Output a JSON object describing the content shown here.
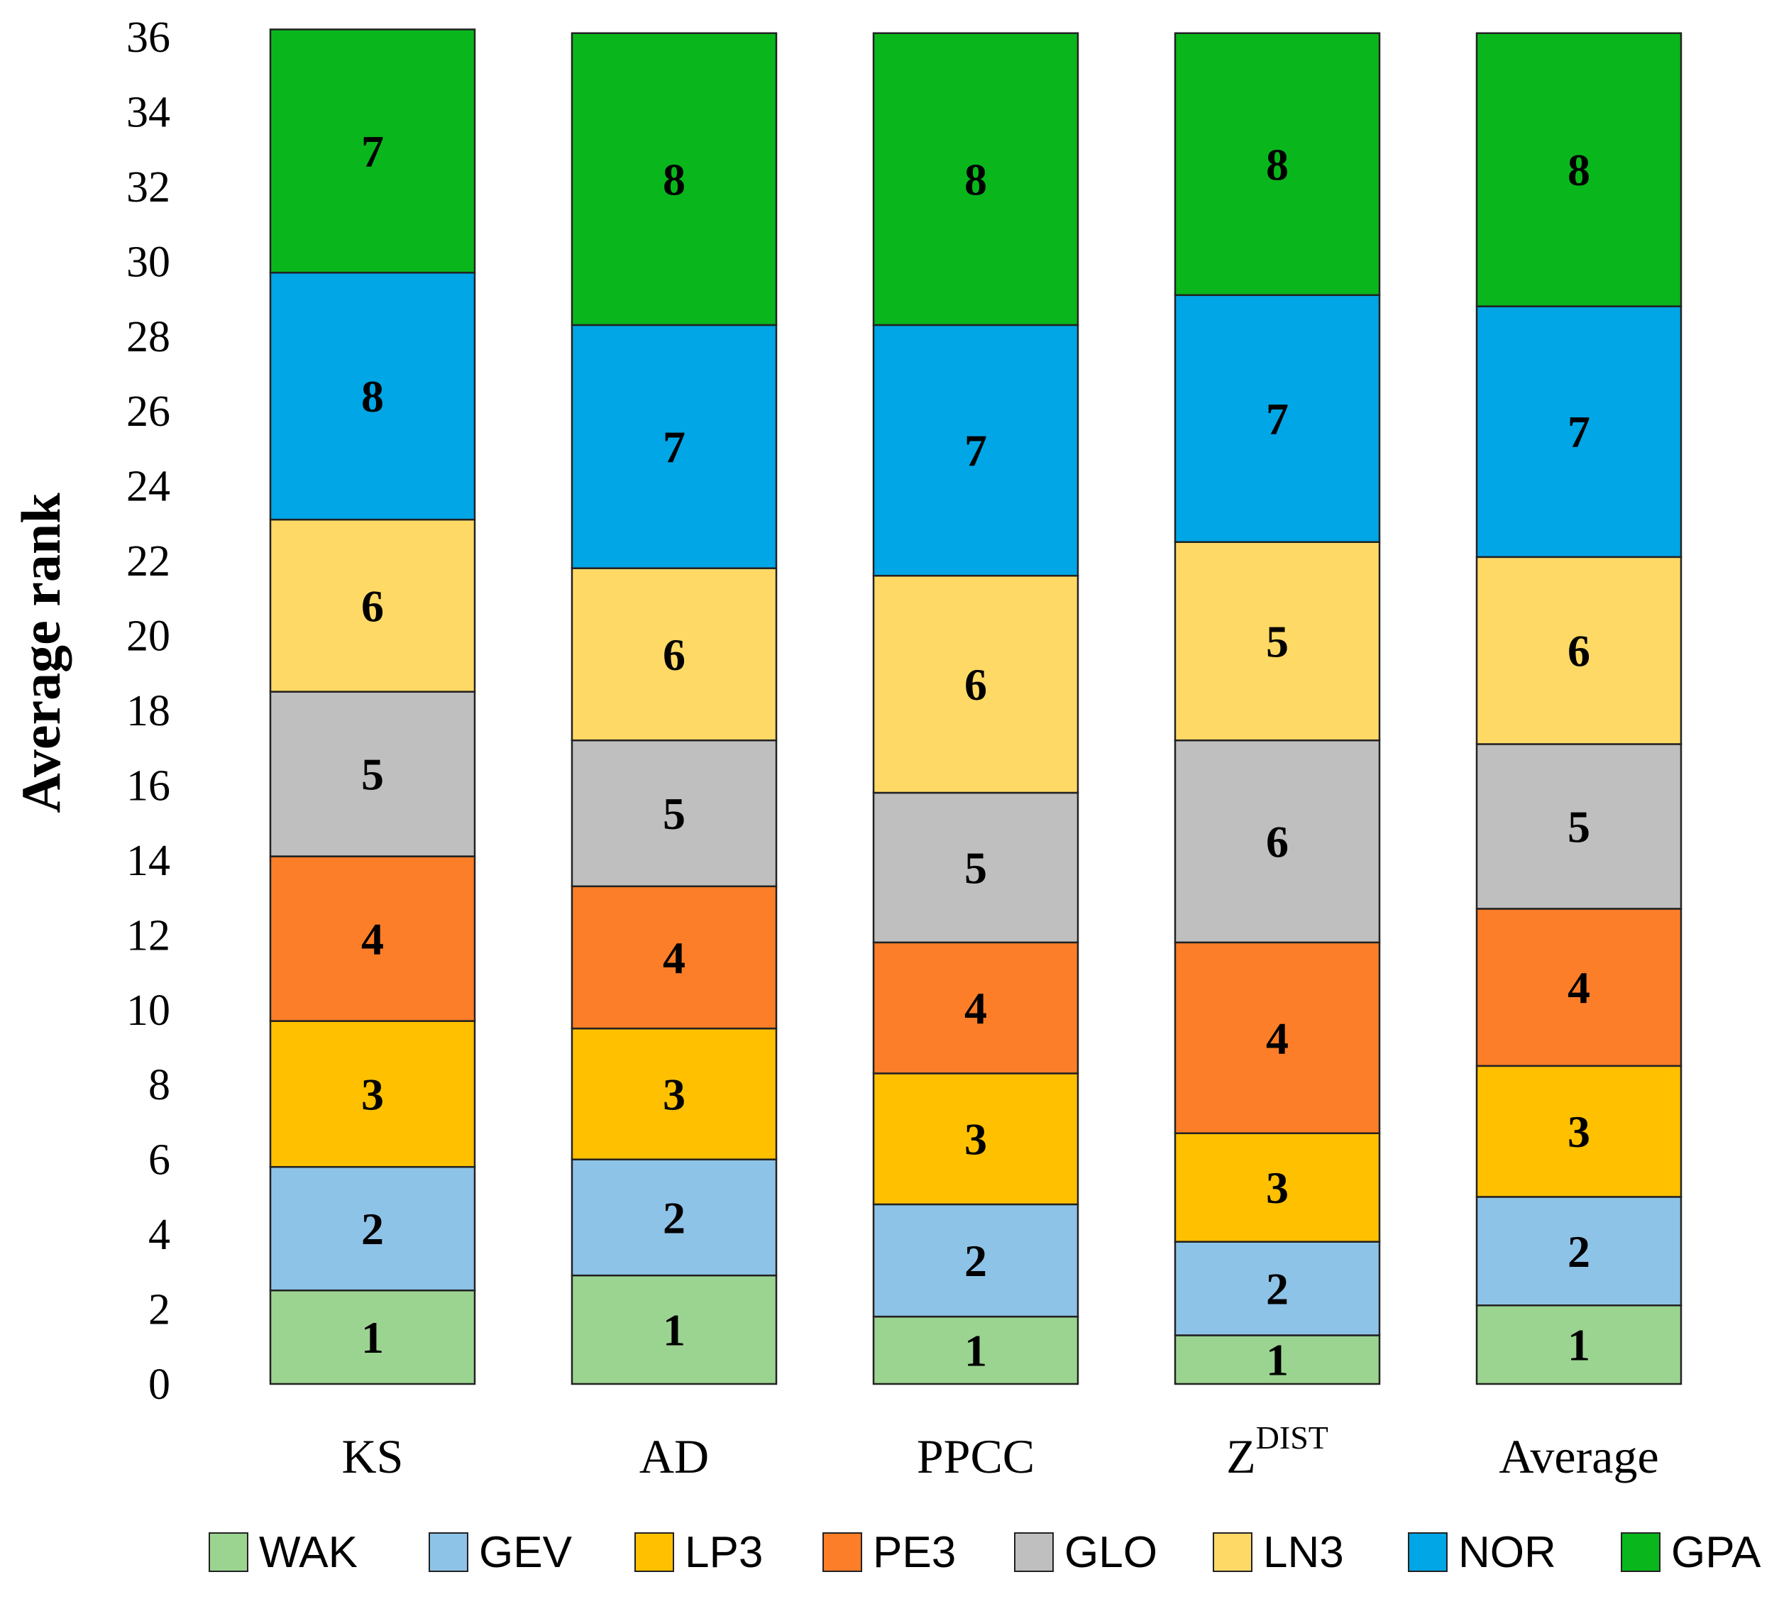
{
  "chart_data": {
    "type": "bar",
    "stacked": true,
    "title": "",
    "xlabel": "",
    "ylabel": "Average rank",
    "ylim": [
      0,
      36
    ],
    "yticks": [
      0,
      2,
      4,
      6,
      8,
      10,
      12,
      14,
      16,
      18,
      20,
      22,
      24,
      26,
      28,
      30,
      32,
      34,
      36
    ],
    "grid": false,
    "legend_position": "bottom",
    "categories": [
      "KS",
      "AD",
      "PPCC",
      "Z",
      "Average"
    ],
    "category_superscripts": [
      "",
      "",
      "",
      "DIST",
      ""
    ],
    "series": [
      {
        "name": "WAK",
        "color": "#9bd490",
        "values": [
          2.5,
          2.9,
          1.8,
          1.3,
          2.1
        ],
        "ranks": [
          "1",
          "1",
          "1",
          "1",
          "1"
        ]
      },
      {
        "name": "GEV",
        "color": "#8ec3e8",
        "values": [
          3.3,
          3.1,
          3.0,
          2.5,
          2.9
        ],
        "ranks": [
          "2",
          "2",
          "2",
          "2",
          "2"
        ]
      },
      {
        "name": "LP3",
        "color": "#ffc000",
        "values": [
          3.9,
          3.5,
          3.5,
          2.9,
          3.5
        ],
        "ranks": [
          "3",
          "3",
          "3",
          "3",
          "3"
        ]
      },
      {
        "name": "PE3",
        "color": "#fd7e28",
        "values": [
          4.4,
          3.8,
          3.5,
          5.1,
          4.2
        ],
        "ranks": [
          "4",
          "4",
          "4",
          "4",
          "4"
        ]
      },
      {
        "name": "GLO",
        "color": "#bfbfbf",
        "values": [
          4.4,
          3.9,
          4.0,
          5.4,
          4.4
        ],
        "ranks": [
          "5",
          "5",
          "5",
          "6",
          "5"
        ]
      },
      {
        "name": "LN3",
        "color": "#ffd966",
        "values": [
          4.6,
          4.6,
          5.8,
          5.3,
          5.0
        ],
        "ranks": [
          "6",
          "6",
          "6",
          "5",
          "6"
        ]
      },
      {
        "name": "NOR",
        "color": "#00a6e6",
        "values": [
          6.6,
          6.5,
          6.7,
          6.6,
          6.7
        ],
        "ranks": [
          "8",
          "7",
          "7",
          "7",
          "7"
        ]
      },
      {
        "name": "GPA",
        "color": "#09b71c",
        "values": [
          6.5,
          7.8,
          7.8,
          7.0,
          7.3
        ],
        "ranks": [
          "7",
          "8",
          "8",
          "8",
          "8"
        ]
      }
    ]
  }
}
